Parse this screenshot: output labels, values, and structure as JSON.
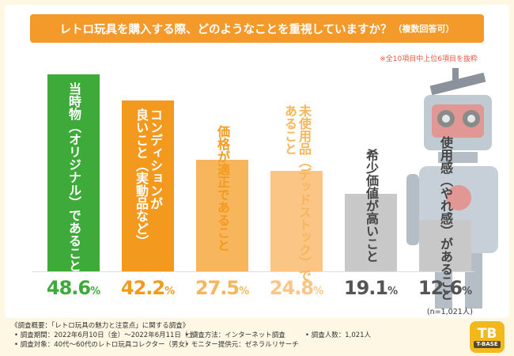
{
  "title": "レトロ玩具を購入する際、どのようなことを重視していますか？",
  "title_suffix": "（複数回答可）",
  "note": "※全10項目中上位6項目を抜粋",
  "sample_label": "(n=1,021人)",
  "chart_data": {
    "type": "bar",
    "categories": [
      "当時物（オリジナル）であること",
      "コンディションが良いこと（実動品など）",
      "価格が適正であること",
      "未使用品（デッドストック）であること",
      "希少価値が高いこと",
      "使用感（やれ感）があること"
    ],
    "values": [
      48.6,
      42.2,
      27.5,
      24.8,
      19.1,
      12.6
    ],
    "value_labels": [
      "48.6",
      "42.2",
      "27.5",
      "24.8",
      "19.1",
      "12.6"
    ],
    "unit": "%",
    "bar_text": [
      "当時物（オリジナル）であること",
      "コンディションが\n良いこと（実動品など）",
      "価格が適正であること",
      "未使用品（デッドストック）で\nあること",
      "希少価値が高いこと",
      "使用感（やれ感）があること"
    ],
    "colors": [
      "#3daa3a",
      "#f39a1e",
      "#f8b65c",
      "#fbc585",
      "#c8c8c8",
      "#c8c8c8"
    ],
    "value_colors": [
      "#3daa3a",
      "#f39a1e",
      "#f8b65c",
      "#fbc585",
      "#555555",
      "#555555"
    ],
    "ylim": [
      0,
      50
    ]
  },
  "footer": {
    "survey_name": "《調査概要：「レトロ玩具の魅力と注意点」に関する調査》",
    "period": "• 調査期間：2022年6月10日（金）～2022年6月11日（土）",
    "method": "• 調査方法：インターネット調査",
    "count": "• 調査人数：1,021人",
    "target": "• 調査対象：40代～60代のレトロ玩具コレクター（男女）",
    "provider": "• モニター提供元：ゼネラルリサーチ"
  },
  "logo": {
    "mark": "TB",
    "text": "T-BASE"
  },
  "colors": {
    "title_bg": "#f39a2b",
    "page_bg": "#fdf7e3",
    "note": "#e8553d"
  }
}
